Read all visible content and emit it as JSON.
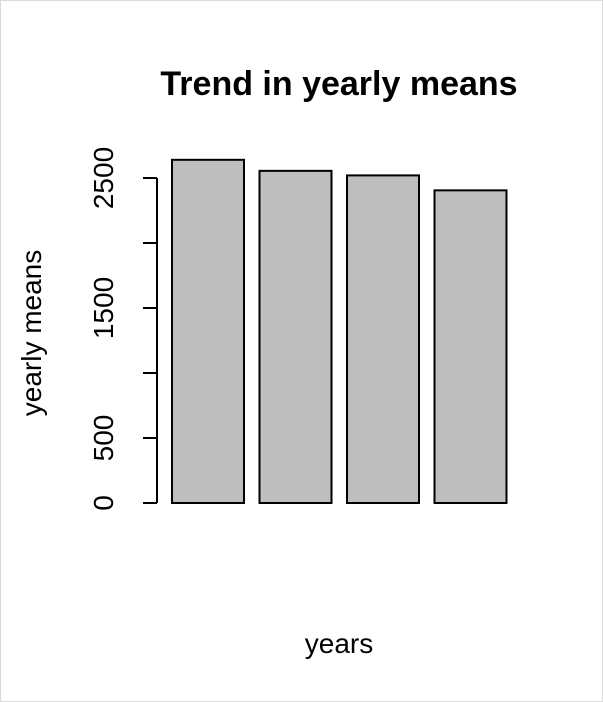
{
  "chart_data": {
    "type": "bar",
    "title": "Trend in yearly means",
    "xlabel": "years",
    "ylabel": "yearly means",
    "categories": [
      "",
      "",
      "",
      ""
    ],
    "values": [
      2640,
      2555,
      2520,
      2405
    ],
    "ylim": [
      0,
      2500
    ],
    "yticks": [
      0,
      500,
      1000,
      1500,
      2000,
      2500
    ],
    "ytick_labels": [
      "0",
      "500",
      "",
      "1500",
      "",
      "2500"
    ],
    "bar_fill": "#bebebe",
    "bar_stroke": "#000000",
    "grid": false,
    "legend": "none"
  }
}
